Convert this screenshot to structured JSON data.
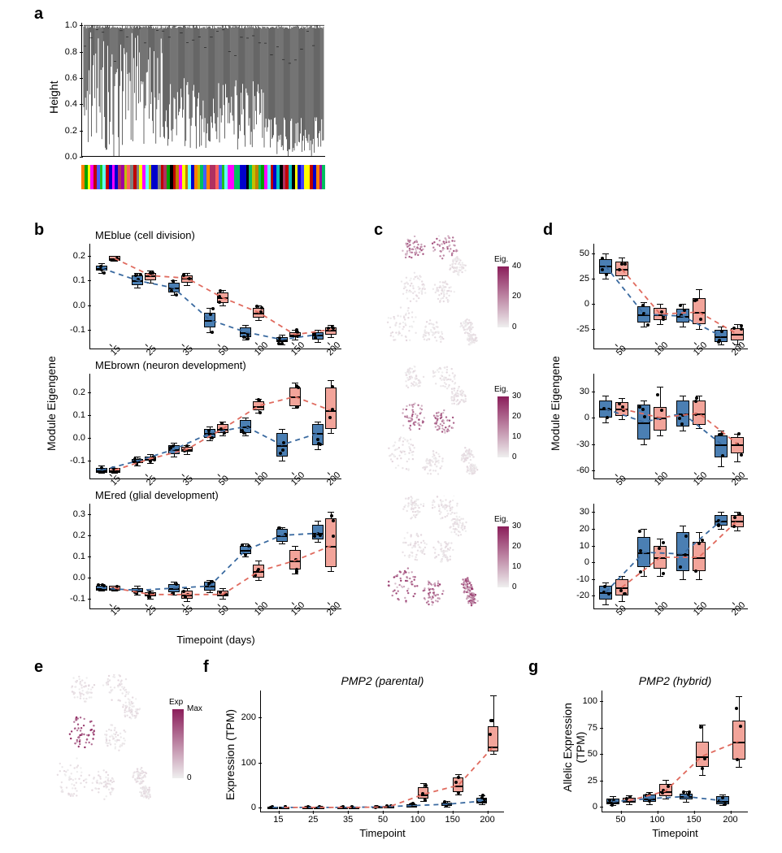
{
  "colors": {
    "blue_box": "#4b7fb3",
    "red_box": "#f2a49a",
    "blue_line": "#3a6aa0",
    "red_line": "#e06b5f",
    "grad_dark": "#8b1e5a",
    "grad_light": "#efefef",
    "background": "#ffffff",
    "axis": "#000000"
  },
  "panels": {
    "a": {
      "label": "a"
    },
    "b": {
      "label": "b",
      "ylabel": "Module Eigengene",
      "xlabel": "Timepoint (days)",
      "xticks": [
        "15",
        "25",
        "35",
        "50",
        "100",
        "150",
        "200"
      ],
      "charts": [
        {
          "title": "MEblue (cell division)",
          "yticks": [
            "-0.1",
            "0.0",
            "0.1",
            "0.2"
          ],
          "ylim": [
            -0.18,
            0.25
          ],
          "blue": [
            {
              "med": 0.15,
              "q1": 0.14,
              "q3": 0.16,
              "lo": 0.13,
              "hi": 0.17
            },
            {
              "med": 0.1,
              "q1": 0.08,
              "q3": 0.12,
              "lo": 0.07,
              "hi": 0.13
            },
            {
              "med": 0.07,
              "q1": 0.05,
              "q3": 0.09,
              "lo": 0.04,
              "hi": 0.1
            },
            {
              "med": -0.06,
              "q1": -0.09,
              "q3": -0.03,
              "lo": -0.11,
              "hi": -0.01
            },
            {
              "med": -0.11,
              "q1": -0.13,
              "q3": -0.09,
              "lo": -0.14,
              "hi": -0.08
            },
            {
              "med": -0.14,
              "q1": -0.15,
              "q3": -0.13,
              "lo": -0.16,
              "hi": -0.12
            },
            {
              "med": -0.12,
              "q1": -0.14,
              "q3": -0.11,
              "lo": -0.15,
              "hi": -0.1
            }
          ],
          "red": [
            {
              "med": 0.19,
              "q1": 0.18,
              "q3": 0.2,
              "lo": 0.18,
              "hi": 0.2
            },
            {
              "med": 0.12,
              "q1": 0.1,
              "q3": 0.13,
              "lo": 0.09,
              "hi": 0.14
            },
            {
              "med": 0.11,
              "q1": 0.09,
              "q3": 0.12,
              "lo": 0.08,
              "hi": 0.13
            },
            {
              "med": 0.03,
              "q1": 0.01,
              "q3": 0.05,
              "lo": 0.0,
              "hi": 0.06
            },
            {
              "med": -0.03,
              "q1": -0.05,
              "q3": -0.01,
              "lo": -0.06,
              "hi": 0.0
            },
            {
              "med": -0.12,
              "q1": -0.13,
              "q3": -0.11,
              "lo": -0.14,
              "hi": -0.1
            },
            {
              "med": -0.1,
              "q1": -0.12,
              "q3": -0.09,
              "lo": -0.13,
              "hi": -0.08
            }
          ]
        },
        {
          "title": "MEbrown (neuron development)",
          "yticks": [
            "-0.1",
            "0.0",
            "0.1",
            "0.2"
          ],
          "ylim": [
            -0.18,
            0.28
          ],
          "blue": [
            {
              "med": -0.14,
              "q1": -0.15,
              "q3": -0.13,
              "lo": -0.15,
              "hi": -0.12
            },
            {
              "med": -0.1,
              "q1": -0.11,
              "q3": -0.09,
              "lo": -0.12,
              "hi": -0.08
            },
            {
              "med": -0.05,
              "q1": -0.07,
              "q3": -0.03,
              "lo": -0.08,
              "hi": -0.02
            },
            {
              "med": 0.02,
              "q1": 0.0,
              "q3": 0.04,
              "lo": -0.01,
              "hi": 0.05
            },
            {
              "med": 0.05,
              "q1": 0.02,
              "q3": 0.08,
              "lo": 0.01,
              "hi": 0.09
            },
            {
              "med": -0.03,
              "q1": -0.08,
              "q3": 0.02,
              "lo": -0.1,
              "hi": 0.04
            },
            {
              "med": 0.02,
              "q1": -0.03,
              "q3": 0.06,
              "lo": -0.05,
              "hi": 0.07
            }
          ],
          "red": [
            {
              "med": -0.14,
              "q1": -0.15,
              "q3": -0.13,
              "lo": -0.15,
              "hi": -0.13
            },
            {
              "med": -0.09,
              "q1": -0.1,
              "q3": -0.08,
              "lo": -0.11,
              "hi": -0.07
            },
            {
              "med": -0.05,
              "q1": -0.06,
              "q3": -0.04,
              "lo": -0.07,
              "hi": -0.03
            },
            {
              "med": 0.04,
              "q1": 0.02,
              "q3": 0.06,
              "lo": 0.01,
              "hi": 0.07
            },
            {
              "med": 0.14,
              "q1": 0.12,
              "q3": 0.16,
              "lo": 0.11,
              "hi": 0.17
            },
            {
              "med": 0.18,
              "q1": 0.14,
              "q3": 0.22,
              "lo": 0.13,
              "hi": 0.24
            },
            {
              "med": 0.12,
              "q1": 0.04,
              "q3": 0.22,
              "lo": 0.02,
              "hi": 0.25
            }
          ]
        },
        {
          "title": "MEred (glial development)",
          "yticks": [
            "-0.1",
            "0.0",
            "0.1",
            "0.2",
            "0.3"
          ],
          "ylim": [
            -0.15,
            0.35
          ],
          "blue": [
            {
              "med": -0.05,
              "q1": -0.06,
              "q3": -0.04,
              "lo": -0.06,
              "hi": -0.03
            },
            {
              "med": -0.06,
              "q1": -0.07,
              "q3": -0.05,
              "lo": -0.08,
              "hi": -0.04
            },
            {
              "med": -0.05,
              "q1": -0.07,
              "q3": -0.03,
              "lo": -0.08,
              "hi": -0.02
            },
            {
              "med": -0.04,
              "q1": -0.06,
              "q3": -0.02,
              "lo": -0.07,
              "hi": -0.01
            },
            {
              "med": 0.13,
              "q1": 0.11,
              "q3": 0.15,
              "lo": 0.1,
              "hi": 0.16
            },
            {
              "med": 0.2,
              "q1": 0.17,
              "q3": 0.23,
              "lo": 0.16,
              "hi": 0.24
            },
            {
              "med": 0.21,
              "q1": 0.18,
              "q3": 0.25,
              "lo": 0.17,
              "hi": 0.27
            }
          ],
          "red": [
            {
              "med": -0.05,
              "q1": -0.06,
              "q3": -0.04,
              "lo": -0.06,
              "hi": -0.04
            },
            {
              "med": -0.08,
              "q1": -0.09,
              "q3": -0.07,
              "lo": -0.1,
              "hi": -0.06
            },
            {
              "med": -0.08,
              "q1": -0.1,
              "q3": -0.06,
              "lo": -0.11,
              "hi": -0.05
            },
            {
              "med": -0.08,
              "q1": -0.09,
              "q3": -0.06,
              "lo": -0.1,
              "hi": -0.05
            },
            {
              "med": 0.03,
              "q1": 0.0,
              "q3": 0.06,
              "lo": -0.01,
              "hi": 0.08
            },
            {
              "med": 0.08,
              "q1": 0.04,
              "q3": 0.13,
              "lo": 0.02,
              "hi": 0.15
            },
            {
              "med": 0.15,
              "q1": 0.05,
              "q3": 0.28,
              "lo": 0.03,
              "hi": 0.31
            }
          ]
        }
      ]
    },
    "c": {
      "label": "c",
      "legends": [
        {
          "label": "Eig.",
          "ticks": [
            "40",
            "20",
            "0"
          ]
        },
        {
          "label": "Eig.",
          "ticks": [
            "30",
            "20",
            "10",
            "0"
          ]
        },
        {
          "label": "Eig.",
          "ticks": [
            "30",
            "20",
            "10",
            "0"
          ]
        }
      ]
    },
    "d": {
      "label": "d",
      "ylabel": "Module Eigengene",
      "xticks": [
        "50",
        "100",
        "150",
        "200"
      ],
      "charts": [
        {
          "yticks": [
            "-25",
            "0",
            "25",
            "50"
          ],
          "ylim": [
            -45,
            60
          ],
          "blue": [
            {
              "med": 38,
              "q1": 30,
              "q3": 45,
              "lo": 25,
              "hi": 50
            },
            {
              "med": -10,
              "q1": -18,
              "q3": -2,
              "lo": -22,
              "hi": 2
            },
            {
              "med": -12,
              "q1": -18,
              "q3": -5,
              "lo": -22,
              "hi": 0
            },
            {
              "med": -32,
              "q1": -38,
              "q3": -26,
              "lo": -40,
              "hi": -22
            }
          ],
          "red": [
            {
              "med": 35,
              "q1": 28,
              "q3": 42,
              "lo": 25,
              "hi": 46
            },
            {
              "med": -10,
              "q1": -16,
              "q3": -4,
              "lo": -20,
              "hi": 0
            },
            {
              "med": -8,
              "q1": -20,
              "q3": 6,
              "lo": -25,
              "hi": 15
            },
            {
              "med": -30,
              "q1": -36,
              "q3": -24,
              "lo": -40,
              "hi": -20
            }
          ]
        },
        {
          "yticks": [
            "-60",
            "-30",
            "0",
            "30"
          ],
          "ylim": [
            -70,
            50
          ],
          "blue": [
            {
              "med": 10,
              "q1": 0,
              "q3": 20,
              "lo": -5,
              "hi": 25
            },
            {
              "med": -5,
              "q1": -25,
              "q3": 15,
              "lo": -30,
              "hi": 20
            },
            {
              "med": 5,
              "q1": -10,
              "q3": 20,
              "lo": -15,
              "hi": 25
            },
            {
              "med": -30,
              "q1": -45,
              "q3": -20,
              "lo": -55,
              "hi": -15
            }
          ],
          "red": [
            {
              "med": 10,
              "q1": 2,
              "q3": 18,
              "lo": -2,
              "hi": 22
            },
            {
              "med": 0,
              "q1": -15,
              "q3": 12,
              "lo": -20,
              "hi": 35
            },
            {
              "med": 5,
              "q1": -8,
              "q3": 20,
              "lo": -12,
              "hi": 25
            },
            {
              "med": -30,
              "q1": -40,
              "q3": -22,
              "lo": -50,
              "hi": -18
            }
          ]
        },
        {
          "yticks": [
            "-20",
            "-10",
            "0",
            "10",
            "20",
            "30"
          ],
          "ylim": [
            -28,
            35
          ],
          "blue": [
            {
              "med": -18,
              "q1": -22,
              "q3": -14,
              "lo": -25,
              "hi": -12
            },
            {
              "med": 6,
              "q1": -3,
              "q3": 15,
              "lo": -8,
              "hi": 20
            },
            {
              "med": 5,
              "q1": -5,
              "q3": 18,
              "lo": -10,
              "hi": 22
            },
            {
              "med": 25,
              "q1": 22,
              "q3": 28,
              "lo": 20,
              "hi": 30
            }
          ],
          "red": [
            {
              "med": -15,
              "q1": -20,
              "q3": -10,
              "lo": -23,
              "hi": -8
            },
            {
              "med": 3,
              "q1": -4,
              "q3": 10,
              "lo": -8,
              "hi": 14
            },
            {
              "med": 3,
              "q1": -5,
              "q3": 12,
              "lo": -10,
              "hi": 18
            },
            {
              "med": 25,
              "q1": 21,
              "q3": 28,
              "lo": 19,
              "hi": 30
            }
          ]
        }
      ]
    },
    "e": {
      "label": "e",
      "legend": {
        "label": "Exp",
        "ticks": [
          "Max",
          "0"
        ]
      }
    },
    "f": {
      "label": "f",
      "title": "PMP2 (parental)",
      "ylabel": "Expression (TPM)",
      "xlabel": "Timepoint",
      "xticks": [
        "15",
        "25",
        "35",
        "50",
        "100",
        "150",
        "200"
      ],
      "yticks": [
        "0",
        "100",
        "200"
      ],
      "ylim": [
        -10,
        260
      ],
      "blue": [
        {
          "med": 1,
          "q1": 0,
          "q3": 2,
          "lo": 0,
          "hi": 3
        },
        {
          "med": 1,
          "q1": 0,
          "q3": 2,
          "lo": 0,
          "hi": 3
        },
        {
          "med": 1,
          "q1": 0,
          "q3": 2,
          "lo": 0,
          "hi": 3
        },
        {
          "med": 2,
          "q1": 1,
          "q3": 3,
          "lo": 0,
          "hi": 4
        },
        {
          "med": 5,
          "q1": 3,
          "q3": 8,
          "lo": 2,
          "hi": 10
        },
        {
          "med": 8,
          "q1": 5,
          "q3": 12,
          "lo": 3,
          "hi": 15
        },
        {
          "med": 15,
          "q1": 10,
          "q3": 22,
          "lo": 8,
          "hi": 28
        }
      ],
      "red": [
        {
          "med": 1,
          "q1": 0,
          "q3": 2,
          "lo": 0,
          "hi": 3
        },
        {
          "med": 1,
          "q1": 0,
          "q3": 2,
          "lo": 0,
          "hi": 3
        },
        {
          "med": 1,
          "q1": 0,
          "q3": 2,
          "lo": 0,
          "hi": 3
        },
        {
          "med": 2,
          "q1": 1,
          "q3": 4,
          "lo": 0,
          "hi": 5
        },
        {
          "med": 30,
          "q1": 20,
          "q3": 45,
          "lo": 15,
          "hi": 55
        },
        {
          "med": 50,
          "q1": 35,
          "q3": 68,
          "lo": 30,
          "hi": 75
        },
        {
          "med": 135,
          "q1": 125,
          "q3": 180,
          "lo": 120,
          "hi": 250
        }
      ]
    },
    "g": {
      "label": "g",
      "title": "PMP2 (hybrid)",
      "ylabel": "Allelic Expression\n(TPM)",
      "xlabel": "Timepoint",
      "xticks": [
        "50",
        "100",
        "150",
        "200"
      ],
      "yticks": [
        "0",
        "25",
        "50",
        "75",
        "100"
      ],
      "ylim": [
        -5,
        110
      ],
      "blue": [
        {
          "med": 5,
          "q1": 3,
          "q3": 8,
          "lo": 2,
          "hi": 10
        },
        {
          "med": 8,
          "q1": 5,
          "q3": 12,
          "lo": 3,
          "hi": 14
        },
        {
          "med": 10,
          "q1": 7,
          "q3": 13,
          "lo": 5,
          "hi": 15
        },
        {
          "med": 6,
          "q1": 3,
          "q3": 10,
          "lo": 2,
          "hi": 12
        }
      ],
      "red": [
        {
          "med": 6,
          "q1": 4,
          "q3": 9,
          "lo": 3,
          "hi": 11
        },
        {
          "med": 15,
          "q1": 10,
          "q3": 22,
          "lo": 8,
          "hi": 26
        },
        {
          "med": 48,
          "q1": 38,
          "q3": 62,
          "lo": 30,
          "hi": 78
        },
        {
          "med": 62,
          "q1": 45,
          "q3": 82,
          "lo": 38,
          "hi": 105
        }
      ]
    }
  },
  "dendro": {
    "ylabel": "Height",
    "yticks": [
      "0.0",
      "0.2",
      "0.4",
      "0.6",
      "0.8",
      "1.0"
    ],
    "ylim": [
      0,
      1.02
    ],
    "colorbar_colors": [
      "#ff8000",
      "#00a000",
      "#b03060",
      "#0000cc",
      "#c0c000",
      "#60ffff",
      "#ff00ff",
      "#808080",
      "#00c060",
      "#ff6060",
      "#4060ff",
      "#20c020",
      "#a000a0",
      "#c00000",
      "#4040ff",
      "#c08000",
      "#00c0c0",
      "#ff00ff",
      "#0000cc",
      "#b03060",
      "#0000cc",
      "#60ffff",
      "#000000",
      "#60ffff",
      "#ffff00"
    ]
  }
}
